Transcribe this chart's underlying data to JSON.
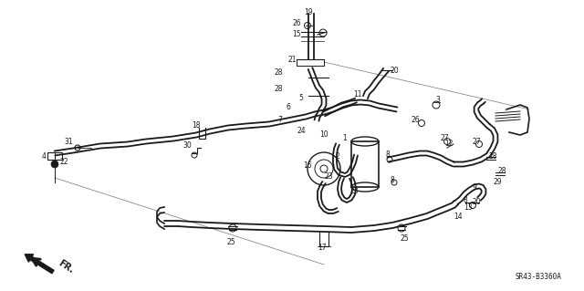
{
  "background_color": "#ffffff",
  "diagram_color": "#1a1a1a",
  "fig_width": 6.4,
  "fig_height": 3.19,
  "dpi": 100,
  "diagram_code": "SR43-B3360A",
  "fr_label": "FR."
}
